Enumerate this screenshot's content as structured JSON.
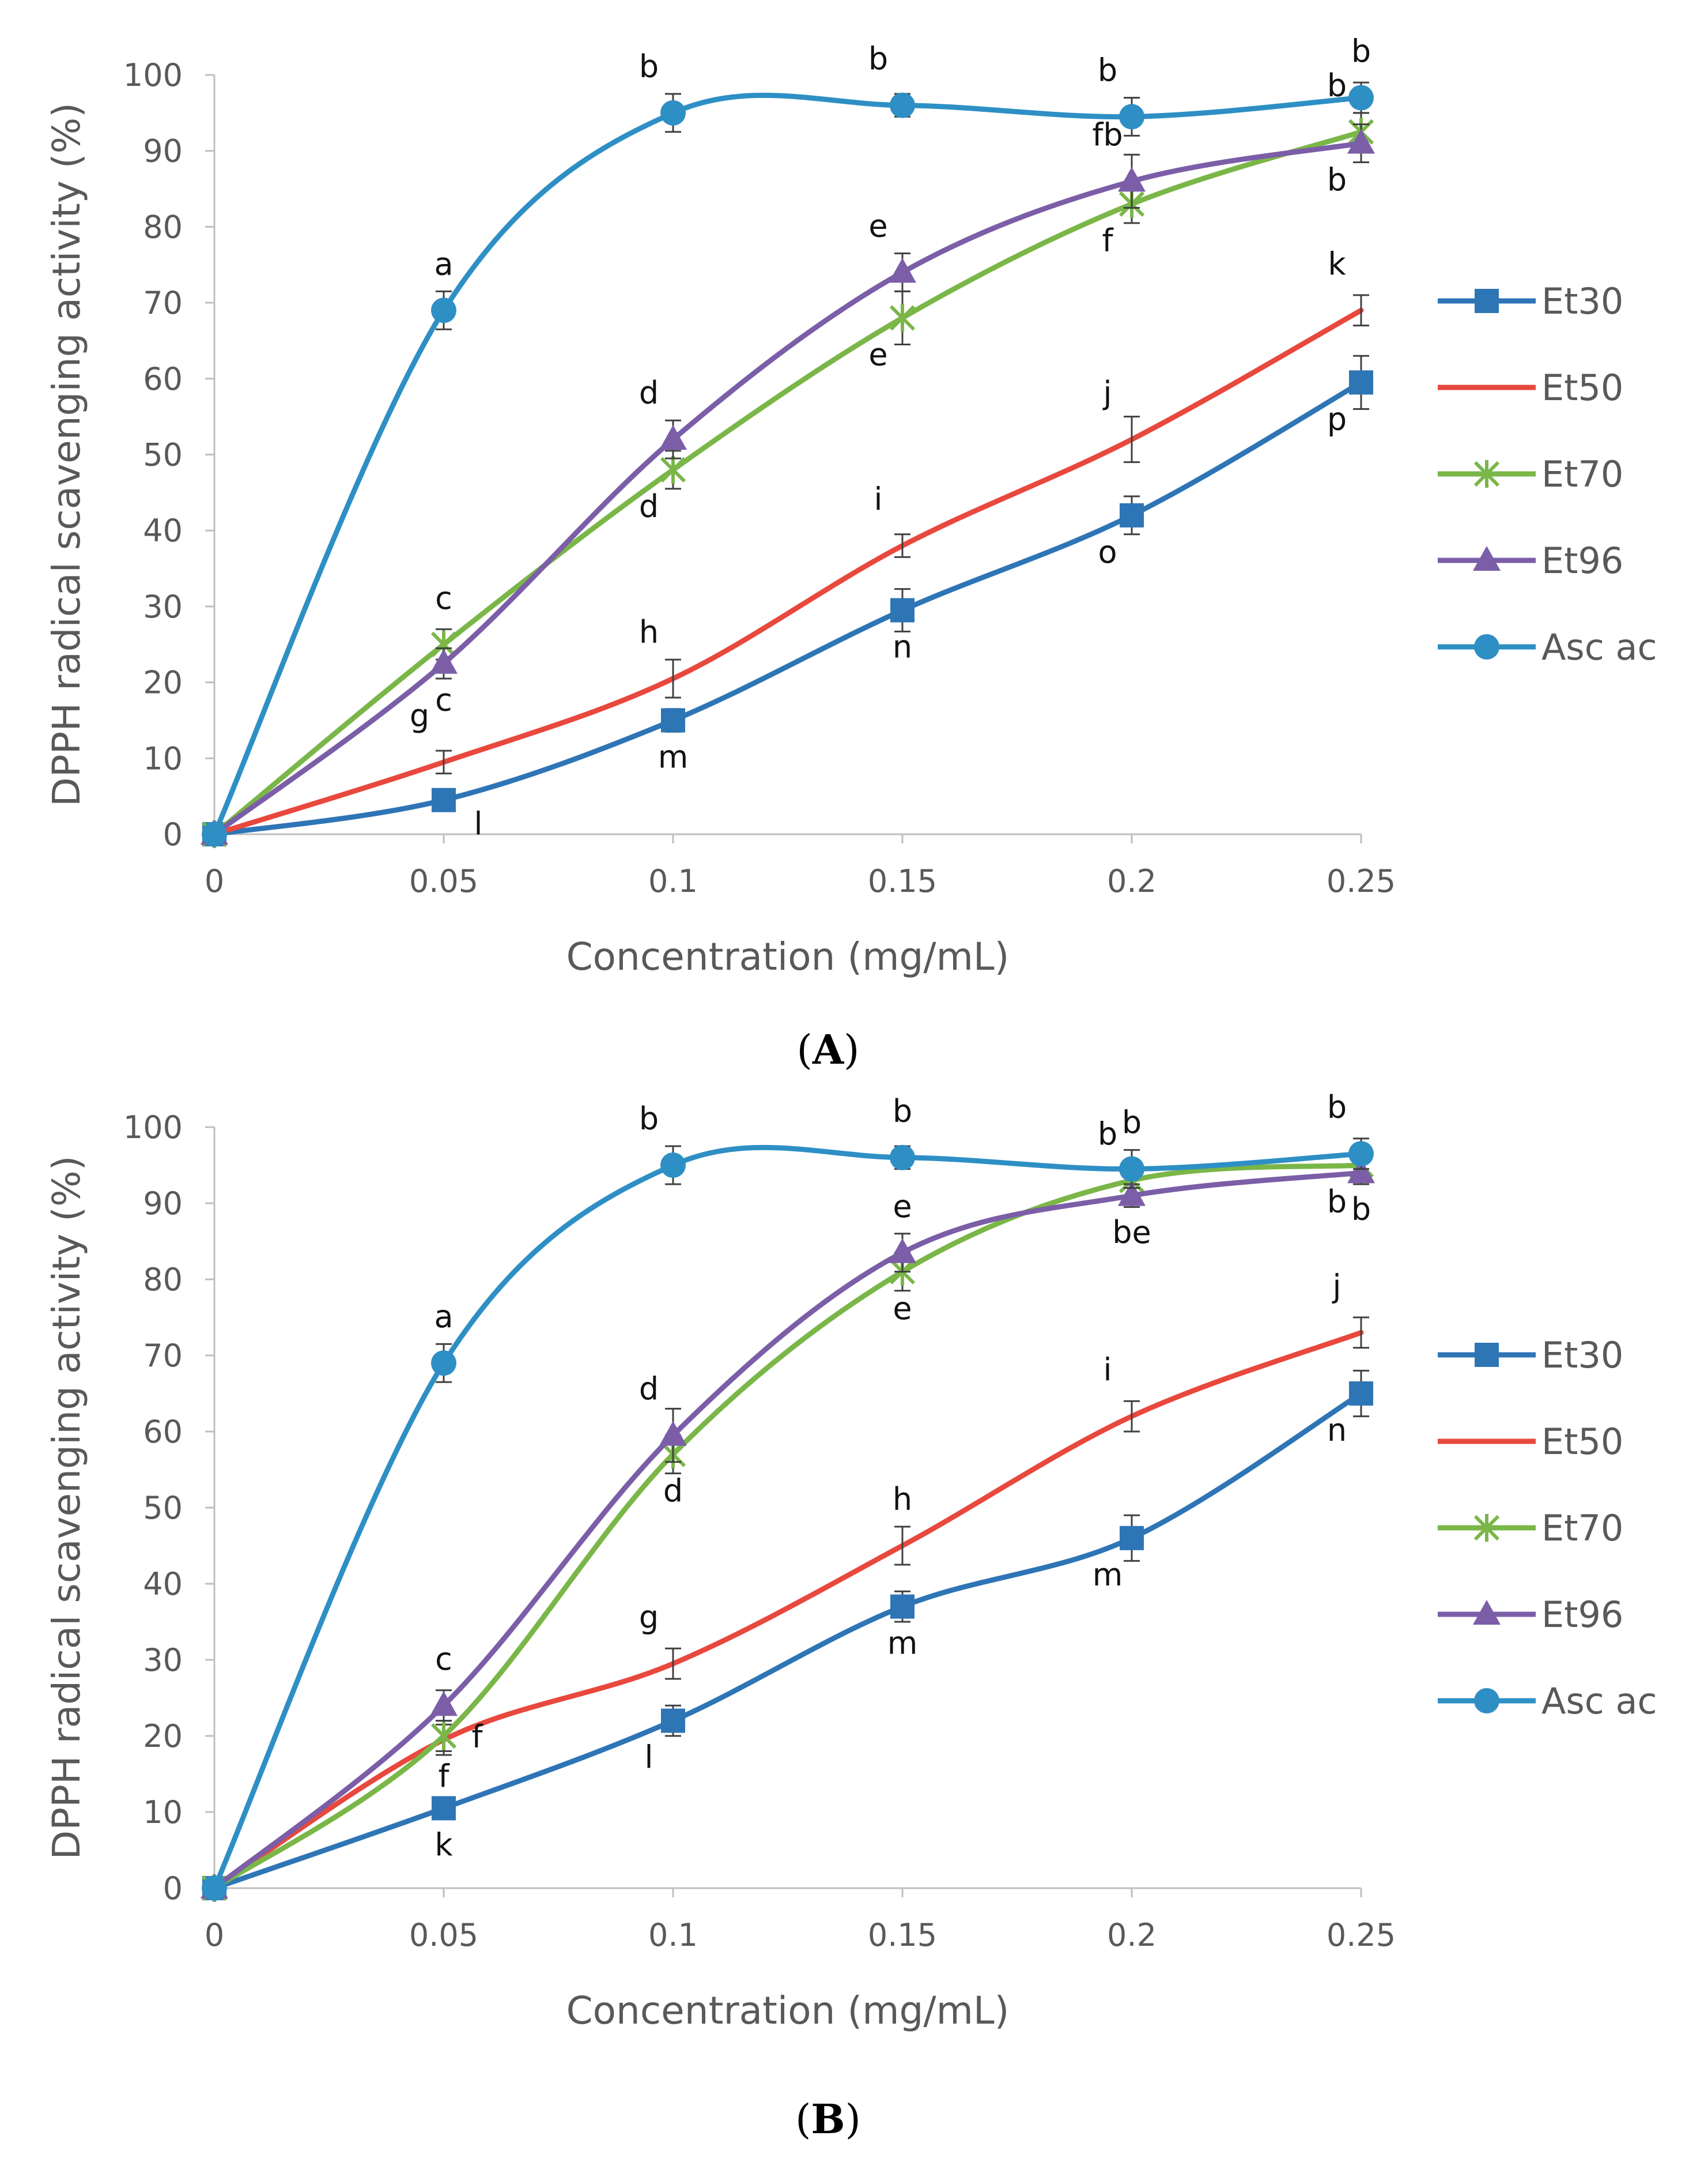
{
  "chart_data": [
    {
      "type": "line",
      "panel_label": "A",
      "xlabel": "Concentration (mg/mL)",
      "ylabel": "DPPH radical scavenging activity (%)",
      "ylim": [
        0,
        100
      ],
      "yticks": [
        "0",
        "10",
        "20",
        "30",
        "40",
        "50",
        "60",
        "70",
        "80",
        "90",
        "100"
      ],
      "x": [
        0,
        0.05,
        0.1,
        0.15,
        0.2,
        0.25
      ],
      "x_tick_labels": [
        "0",
        "0.05",
        "0.1",
        "0.15",
        "0.2",
        "0.25"
      ],
      "series": [
        {
          "name": "Et30",
          "color": "#2E75B6",
          "marker": "square",
          "values": [
            0,
            4.5,
            15,
            29.5,
            42,
            59.5
          ],
          "errors": [
            0,
            1.0,
            1.5,
            2.8,
            2.5,
            3.5
          ],
          "letters": [
            "",
            "l",
            "m",
            "n",
            "o",
            "p"
          ],
          "letter_pos": [
            "",
            "below-right",
            "below",
            "below",
            "below-left",
            "below-left"
          ]
        },
        {
          "name": "Et50",
          "color": "#E8483D",
          "marker": "none",
          "values": [
            0,
            9.5,
            20.5,
            38,
            52,
            69
          ],
          "errors": [
            0,
            1.5,
            2.5,
            1.5,
            3.0,
            2.0
          ],
          "letters": [
            "",
            "g",
            "h",
            "i",
            "j",
            "k"
          ],
          "letter_pos": [
            "",
            "above-left",
            "above-left",
            "above-left",
            "above-left",
            "above-left"
          ]
        },
        {
          "name": "Et70",
          "color": "#7AB648",
          "marker": "star",
          "values": [
            0,
            25,
            48,
            68,
            83,
            92.5
          ],
          "errors": [
            0,
            2.0,
            2.5,
            3.5,
            2.5,
            2.5
          ],
          "letters": [
            "",
            "c",
            "d",
            "e",
            "f",
            "b"
          ],
          "letter_pos": [
            "",
            "above",
            "below-left",
            "below-left",
            "below-left",
            "above-left"
          ]
        },
        {
          "name": "Et96",
          "color": "#7B5EA7",
          "marker": "triangle",
          "values": [
            0,
            22.5,
            52,
            74,
            86,
            91
          ],
          "errors": [
            0,
            2.0,
            2.5,
            2.5,
            3.5,
            2.5
          ],
          "letters": [
            "",
            "c",
            "d",
            "e",
            "fb",
            "b"
          ],
          "letter_pos": [
            "",
            "below",
            "above-left",
            "above-left",
            "above-left",
            "below-left"
          ]
        },
        {
          "name": "Asc ac",
          "color": "#2E8FC5",
          "marker": "circle",
          "values": [
            0,
            69,
            95,
            96,
            94.5,
            97
          ],
          "errors": [
            0,
            2.5,
            2.5,
            1.5,
            2.5,
            2.0
          ],
          "letters": [
            "",
            "a",
            "b",
            "b",
            "b",
            "b"
          ],
          "letter_pos": [
            "",
            "above",
            "above-left",
            "above-left",
            "above-left",
            "above"
          ]
        }
      ]
    },
    {
      "type": "line",
      "panel_label": "B",
      "xlabel": "Concentration (mg/mL)",
      "ylabel": "DPPH radical scavenging activity (%)",
      "ylim": [
        0,
        100
      ],
      "yticks": [
        "0",
        "10",
        "20",
        "30",
        "40",
        "50",
        "60",
        "70",
        "80",
        "90",
        "100"
      ],
      "x": [
        0,
        0.05,
        0.1,
        0.15,
        0.2,
        0.25
      ],
      "x_tick_labels": [
        "0",
        "0.05",
        "0.1",
        "0.15",
        "0.2",
        "0.25"
      ],
      "series": [
        {
          "name": "Et30",
          "color": "#2E75B6",
          "marker": "square",
          "values": [
            0,
            10.5,
            22,
            37,
            46,
            65
          ],
          "errors": [
            0,
            1.0,
            2.0,
            2.0,
            3.0,
            3.0
          ],
          "letters": [
            "",
            "k",
            "l",
            "m",
            "m",
            "n"
          ],
          "letter_pos": [
            "",
            "below",
            "below-left",
            "below",
            "below-left",
            "below-left"
          ]
        },
        {
          "name": "Et50",
          "color": "#E8483D",
          "marker": "none",
          "values": [
            0,
            19.5,
            29.5,
            45,
            62,
            73
          ],
          "errors": [
            0,
            2.0,
            2.0,
            2.5,
            2.0,
            2.0
          ],
          "letters": [
            "",
            "f",
            "g",
            "h",
            "i",
            "j"
          ],
          "letter_pos": [
            "",
            "below",
            "above-left",
            "above",
            "above-left",
            "above-left"
          ]
        },
        {
          "name": "Et70",
          "color": "#7AB648",
          "marker": "star",
          "values": [
            0,
            20,
            57,
            81,
            93,
            95
          ],
          "errors": [
            0,
            2.0,
            2.5,
            2.5,
            2.5,
            1.5
          ],
          "letters": [
            "",
            "f",
            "d",
            "e",
            "b",
            "b"
          ],
          "letter_pos": [
            "",
            "right",
            "below",
            "below",
            "above-left",
            "below-left"
          ]
        },
        {
          "name": "Et96",
          "color": "#7B5EA7",
          "marker": "triangle",
          "values": [
            0,
            24,
            59.5,
            83.5,
            91,
            94
          ],
          "errors": [
            0,
            2.0,
            3.5,
            2.5,
            1.5,
            1.5
          ],
          "letters": [
            "",
            "c",
            "d",
            "e",
            "be",
            "b"
          ],
          "letter_pos": [
            "",
            "above",
            "above-left",
            "above",
            "below",
            "below"
          ]
        },
        {
          "name": "Asc ac",
          "color": "#2E8FC5",
          "marker": "circle",
          "values": [
            0,
            69,
            95,
            96,
            94.5,
            96.5
          ],
          "errors": [
            0,
            2.5,
            2.5,
            1.5,
            2.5,
            2.0
          ],
          "letters": [
            "",
            "a",
            "b",
            "b",
            "b",
            "b"
          ],
          "letter_pos": [
            "",
            "above",
            "above-left",
            "above",
            "above",
            "above-left"
          ]
        }
      ]
    }
  ]
}
